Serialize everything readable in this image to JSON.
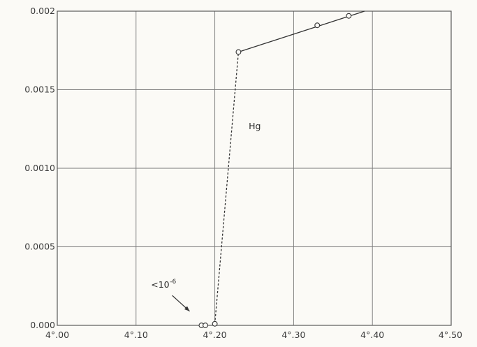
{
  "chart_data": {
    "type": "line",
    "title": "",
    "xlabel": "",
    "ylabel": "",
    "xlim": [
      4.0,
      4.5
    ],
    "ylim": [
      0.0,
      0.002
    ],
    "grid": true,
    "x_ticks": [
      {
        "value": 4.0,
        "label": "4°.00"
      },
      {
        "value": 4.1,
        "label": "4°.10"
      },
      {
        "value": 4.2,
        "label": "4°.20"
      },
      {
        "value": 4.3,
        "label": "4°.30"
      },
      {
        "value": 4.4,
        "label": "4°.40"
      },
      {
        "value": 4.5,
        "label": "4°.50"
      }
    ],
    "y_ticks": [
      {
        "value": 0.0,
        "label": "0.000"
      },
      {
        "value": 0.0005,
        "label": "0.0005"
      },
      {
        "value": 0.001,
        "label": "0.0010"
      },
      {
        "value": 0.0015,
        "label": "0.0015"
      },
      {
        "value": 0.002,
        "label": "0.002"
      }
    ],
    "series": [
      {
        "points": [
          {
            "x": 4.183,
            "y": 0.0
          },
          {
            "x": 4.188,
            "y": 0.0
          },
          {
            "x": 4.2,
            "y": 1e-05
          },
          {
            "x": 4.23,
            "y": 0.00174
          },
          {
            "x": 4.33,
            "y": 0.00191
          },
          {
            "x": 4.37,
            "y": 0.00197
          }
        ],
        "line_segments": [
          {
            "style": "dashed",
            "from": {
              "x": 4.2,
              "y": 1e-05
            },
            "to": {
              "x": 4.23,
              "y": 0.00174
            }
          },
          {
            "style": "solid",
            "from": {
              "x": 4.23,
              "y": 0.00174
            },
            "to": {
              "x": 4.39,
              "y": 0.002
            }
          }
        ]
      }
    ],
    "annotations": [
      {
        "id": "hg",
        "text": "Hg",
        "x": 4.243,
        "y": 0.00125
      },
      {
        "id": "limit",
        "text": "<10",
        "superscript": "-6",
        "x": 4.119,
        "y": 0.00024,
        "arrow_from": {
          "x": 4.146,
          "y": 0.00019
        },
        "arrow_to": {
          "x": 4.168,
          "y": 9e-05
        }
      }
    ]
  }
}
